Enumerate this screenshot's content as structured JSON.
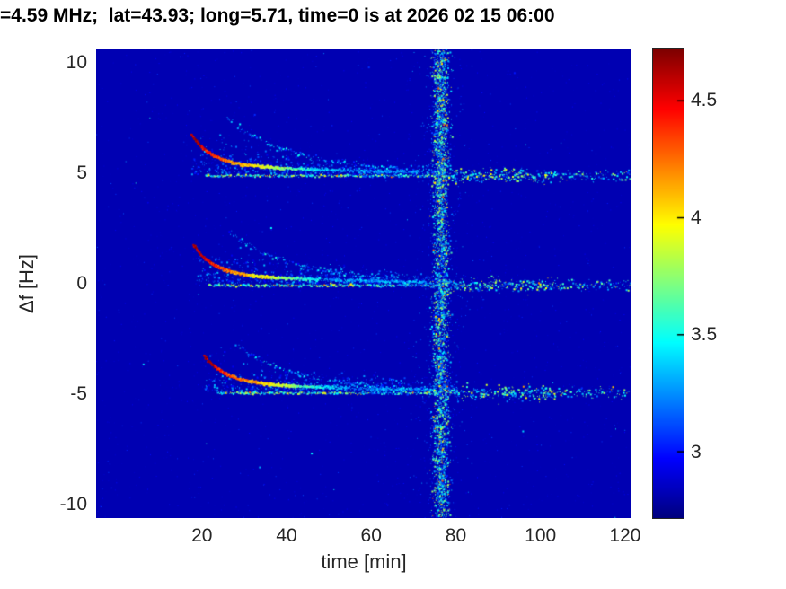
{
  "chart_data": {
    "type": "heatmap",
    "title": "=4.59 MHz;  lat=43.93; long=5.71, time=0 is at 2026 02 15 06:00",
    "xlabel": "time [min]",
    "ylabel": "Δf [Hz]",
    "xlim": [
      -5,
      121.5
    ],
    "ylim": [
      -10.6,
      10.6
    ],
    "xticks": [
      20,
      40,
      60,
      80,
      100,
      120
    ],
    "yticks": [
      10,
      5,
      0,
      -5,
      -10
    ],
    "colormap": "jet",
    "clim": [
      2.72,
      4.72
    ],
    "colorbar_ticks": [
      3,
      3.5,
      4,
      4.5
    ],
    "background_value": 2.82,
    "vertical_stripe": {
      "time": 76.5,
      "sigma_min": 1.0,
      "value_range": [
        3.0,
        4.3
      ]
    },
    "bands": [
      {
        "center": 4.88,
        "curve_start": 17.5,
        "amp_fast": 1.3,
        "tau_fast": 4.5,
        "amp_slow": 0.5,
        "tau_slow": 28,
        "secondary_start": 26,
        "secondary_amp": 2.45,
        "secondary_tau": 16,
        "line_start": 21,
        "line_end": 121.5,
        "cloud_dots": 750
      },
      {
        "center": -0.08,
        "curve_start": 18,
        "amp_fast": 1.25,
        "tau_fast": 4.5,
        "amp_slow": 0.5,
        "tau_slow": 26,
        "secondary_start": 26.5,
        "secondary_amp": 2.3,
        "secondary_tau": 15,
        "line_start": 21.5,
        "line_end": 121.5,
        "cloud_dots": 700
      },
      {
        "center": -4.95,
        "curve_start": 20.5,
        "amp_fast": 1.15,
        "tau_fast": 5.0,
        "amp_slow": 0.45,
        "tau_slow": 26,
        "secondary_start": 28,
        "secondary_amp": 2.1,
        "secondary_tau": 14,
        "line_start": 24,
        "line_end": 121,
        "cloud_dots": 650
      }
    ],
    "speckle_noise": {
      "background_dots": 2200,
      "isolated_specks": 30
    }
  }
}
